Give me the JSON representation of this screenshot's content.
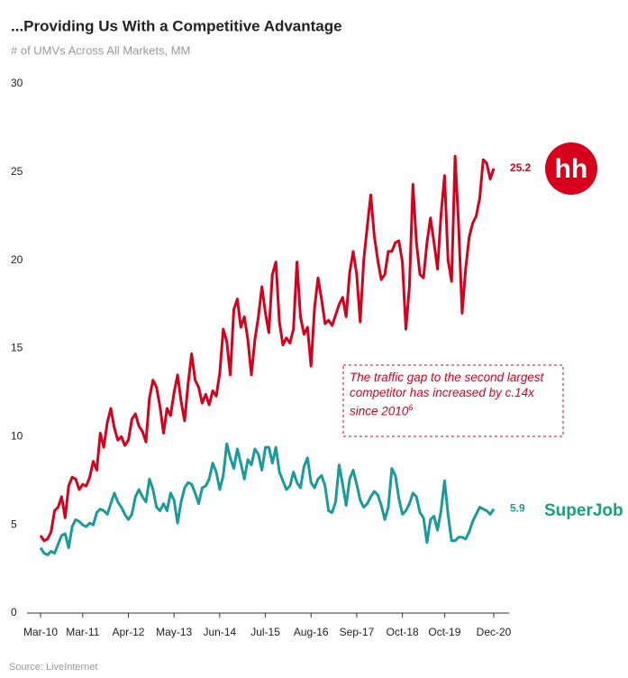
{
  "chart_data": {
    "type": "line",
    "title": "...Providing Us With a Competitive Advantage",
    "subtitle": "# of UMVs Across All Markets, MM",
    "source": "Source: LiveInternet",
    "annotation": {
      "text": "The traffic gap to the second largest competitor has increased by c.14x since 2010",
      "note": "6"
    },
    "categories": [
      "Mar-10",
      null,
      null,
      null,
      null,
      null,
      null,
      null,
      null,
      null,
      null,
      null,
      "Mar-11",
      null,
      null,
      null,
      null,
      null,
      null,
      null,
      null,
      null,
      null,
      null,
      null,
      "Apr-12",
      null,
      null,
      null,
      null,
      null,
      null,
      null,
      null,
      null,
      null,
      null,
      null,
      "May-13",
      null,
      null,
      null,
      null,
      null,
      null,
      null,
      null,
      null,
      null,
      null,
      null,
      "Jun-14",
      null,
      null,
      null,
      null,
      null,
      null,
      null,
      null,
      null,
      null,
      null,
      null,
      "Jul-15",
      null,
      null,
      null,
      null,
      null,
      null,
      null,
      null,
      null,
      null,
      null,
      null,
      "Aug-16",
      null,
      null,
      null,
      null,
      null,
      null,
      null,
      null,
      null,
      null,
      null,
      null,
      "Sep-17",
      null,
      null,
      null,
      null,
      null,
      null,
      null,
      null,
      null,
      null,
      null,
      null,
      "Oct-18",
      null,
      null,
      null,
      null,
      null,
      null,
      null,
      null,
      null,
      null,
      null,
      "Oct-19",
      null,
      null,
      null,
      null,
      null,
      null,
      null,
      null,
      null,
      null,
      null,
      null,
      null,
      "Dec-20"
    ],
    "series": [
      {
        "name": "hh",
        "color": "#d6001c",
        "values": [
          4.4,
          4.1,
          4.2,
          4.6,
          5.8,
          6.0,
          6.6,
          5.4,
          7.2,
          7.7,
          7.6,
          7.0,
          7.3,
          7.2,
          7.7,
          8.6,
          8.1,
          10.2,
          9.4,
          10.8,
          11.6,
          10.5,
          9.8,
          10.0,
          9.5,
          9.8,
          11.0,
          11.3,
          10.6,
          10.3,
          9.7,
          12.2,
          13.2,
          12.8,
          11.7,
          10.2,
          11.6,
          11.2,
          12.5,
          13.5,
          12.0,
          10.9,
          13.0,
          14.7,
          13.2,
          12.8,
          11.9,
          12.4,
          11.8,
          12.6,
          12.3,
          13.6,
          16.1,
          15.4,
          13.5,
          17.2,
          17.8,
          16.2,
          16.8,
          15.5,
          13.5,
          15.5,
          16.8,
          18.5,
          17.0,
          15.9,
          19.2,
          19.9,
          16.5,
          15.2,
          15.6,
          15.3,
          16.1,
          19.9,
          16.8,
          15.8,
          16.2,
          14.0,
          17.3,
          19.0,
          17.8,
          16.4,
          16.6,
          16.3,
          16.9,
          17.5,
          17.9,
          16.8,
          19.3,
          20.5,
          19.2,
          16.5,
          20.0,
          21.9,
          23.7,
          21.4,
          20.0,
          18.9,
          19.2,
          20.5,
          20.5,
          21.0,
          21.1,
          19.9,
          16.1,
          18.5,
          24.3,
          21.0,
          19.2,
          19.0,
          21.0,
          22.4,
          21.0,
          19.5,
          22.6,
          24.8,
          20.0,
          18.8,
          25.9,
          22.0,
          17.0,
          19.5,
          21.3,
          22.1,
          22.5,
          23.5,
          25.7,
          25.5,
          24.6,
          25.2
        ]
      },
      {
        "name": "SuperJob",
        "color": "#1a9a9a",
        "values": [
          3.7,
          3.4,
          3.3,
          3.5,
          3.4,
          3.9,
          4.4,
          4.5,
          3.7,
          4.9,
          5.3,
          5.2,
          5.0,
          4.9,
          5.1,
          5.0,
          5.7,
          5.9,
          5.8,
          5.6,
          6.2,
          6.8,
          6.3,
          6.0,
          5.6,
          5.3,
          5.6,
          6.6,
          7.0,
          6.6,
          6.3,
          7.6,
          7.0,
          6.0,
          5.8,
          6.2,
          5.8,
          6.8,
          6.4,
          5.1,
          6.3,
          7.1,
          7.4,
          7.3,
          6.8,
          6.2,
          7.1,
          7.2,
          7.6,
          8.5,
          8.0,
          7.0,
          7.8,
          9.6,
          8.8,
          8.2,
          9.3,
          8.5,
          7.6,
          8.7,
          8.4,
          9.3,
          9.0,
          8.1,
          9.4,
          9.4,
          8.5,
          9.4,
          8.0,
          7.5,
          7.0,
          7.2,
          8.0,
          7.4,
          7.1,
          8.3,
          8.8,
          7.4,
          7.1,
          7.6,
          7.8,
          7.2,
          5.8,
          5.7,
          6.3,
          8.4,
          7.3,
          6.1,
          7.6,
          8.1,
          7.3,
          6.4,
          6.0,
          6.2,
          6.6,
          6.9,
          6.7,
          6.1,
          5.3,
          6.0,
          8.2,
          7.8,
          6.5,
          5.6,
          5.8,
          6.2,
          6.8,
          6.6,
          5.7,
          5.4,
          4.0,
          5.3,
          5.5,
          4.7,
          5.8,
          7.5,
          5.6,
          4.1,
          4.1,
          4.3,
          4.3,
          4.2,
          4.6,
          5.2,
          5.6,
          6.0,
          5.9,
          5.8,
          5.6,
          5.9
        ]
      }
    ],
    "ylim": [
      0,
      30
    ],
    "yticks": [
      0,
      5,
      10,
      15,
      20,
      25,
      30
    ],
    "grid": false
  }
}
